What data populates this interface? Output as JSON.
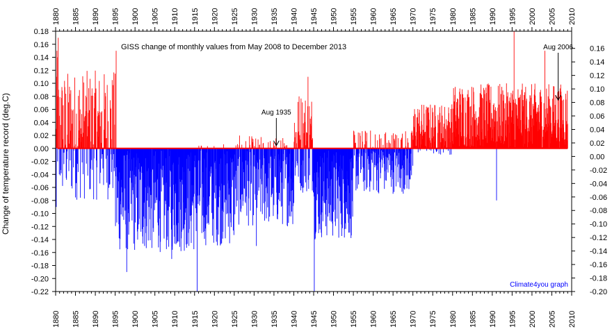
{
  "chart_data": {
    "type": "bar",
    "title": "GISS change of monthly values from May 2008 to December 2013",
    "xlabel": "",
    "ylabel": "Change of temperature record (deg.C)",
    "xlim": [
      1880,
      2010
    ],
    "ylim": [
      -0.22,
      0.18
    ],
    "ylim_right": [
      -0.2,
      0.17
    ],
    "x_ticks": [
      1880,
      1885,
      1890,
      1895,
      1900,
      1905,
      1910,
      1915,
      1920,
      1925,
      1930,
      1935,
      1940,
      1945,
      1950,
      1955,
      1960,
      1965,
      1970,
      1975,
      1980,
      1985,
      1990,
      1995,
      2000,
      2005,
      2010
    ],
    "x_tick_labels": [
      "1880",
      "1885",
      "1890",
      "1895",
      "1900",
      "1905",
      "1910",
      "1915",
      "1920",
      "1925",
      "1930",
      "1935",
      "1940",
      "1945",
      "1950",
      "1955",
      "1960",
      "1965",
      "1970",
      "1975",
      "1980",
      "1985",
      "1990",
      "1995",
      "2000",
      "2005",
      "2010"
    ],
    "y_ticks_left": [
      0.18,
      0.16,
      0.14,
      0.12,
      0.1,
      0.08,
      0.06,
      0.04,
      0.02,
      0.0,
      -0.02,
      -0.04,
      -0.06,
      -0.08,
      -0.1,
      -0.12,
      -0.14,
      -0.16,
      -0.18,
      -0.2,
      -0.22
    ],
    "y_tick_labels_left": [
      "0.18",
      "0.16",
      "0.14",
      "0.12",
      "0.10",
      "0.08",
      "0.06",
      "0.04",
      "0.02",
      "0.00",
      "-0.02",
      "-0.04",
      "-0.06",
      "-0.08",
      "-0.10",
      "-0.12",
      "-0.14",
      "-0.16",
      "-0.18",
      "-0.20",
      "-0.22"
    ],
    "y_ticks_right": [
      0.16,
      0.14,
      0.12,
      0.1,
      0.08,
      0.06,
      0.04,
      0.02,
      0.0,
      -0.02,
      -0.04,
      -0.06,
      -0.08,
      -0.1,
      -0.12,
      -0.14,
      -0.16,
      -0.18,
      -0.2
    ],
    "y_tick_labels_right": [
      "0.16",
      "0.14",
      "0.12",
      "0.10",
      "0.08",
      "0.06",
      "0.04",
      "0.02",
      "0.00",
      "-0.02",
      "-0.04",
      "-0.06",
      "-0.08",
      "-0.10",
      "-0.12",
      "-0.14",
      "-0.16",
      "-0.18",
      "-0.20"
    ],
    "grid": false,
    "positive_color": "#ff0000",
    "negative_color": "#0000ff",
    "zero_line_color": "#ff0000",
    "annotations": [
      {
        "text": "Aug 1935",
        "x": 1935.6,
        "y": 0.0
      },
      {
        "text": "Aug 2006",
        "x": 2006.6,
        "y": 0.07
      }
    ],
    "credit": "Climate4you graph",
    "credit_color": "#0000ff",
    "series_1880s": [
      0.03,
      -0.09,
      0.11,
      0.15,
      0.14,
      -0.02,
      0.08,
      0.17,
      0.09,
      0.0,
      -0.04,
      0.05
    ],
    "decade_profile": [
      {
        "start": 1880,
        "end": 1895,
        "mean": 0.02,
        "amp": 0.1
      },
      {
        "start": 1895,
        "end": 1915,
        "mean": -0.08,
        "amp": 0.08
      },
      {
        "start": 1915,
        "end": 1925,
        "mean": -0.07,
        "amp": 0.08
      },
      {
        "start": 1925,
        "end": 1940,
        "mean": -0.05,
        "amp": 0.07
      },
      {
        "start": 1940,
        "end": 1945,
        "mean": 0.01,
        "amp": 0.08
      },
      {
        "start": 1945,
        "end": 1955,
        "mean": -0.07,
        "amp": 0.07
      },
      {
        "start": 1955,
        "end": 1970,
        "mean": -0.02,
        "amp": 0.05
      },
      {
        "start": 1970,
        "end": 1980,
        "mean": 0.03,
        "amp": 0.04
      },
      {
        "start": 1980,
        "end": 2009,
        "mean": 0.05,
        "amp": 0.05
      }
    ],
    "extremes": [
      {
        "x": 1895.2,
        "y": 0.15
      },
      {
        "x": 1915.6,
        "y": -0.22
      },
      {
        "x": 1945.1,
        "y": -0.22
      },
      {
        "x": 1943.5,
        "y": 0.11
      },
      {
        "x": 1995.4,
        "y": 0.19
      },
      {
        "x": 2003.2,
        "y": 0.15
      },
      {
        "x": 1991.0,
        "y": -0.08
      },
      {
        "x": 1897.8,
        "y": -0.19
      },
      {
        "x": 1909.2,
        "y": -0.17
      },
      {
        "x": 1930.5,
        "y": -0.15
      }
    ]
  }
}
